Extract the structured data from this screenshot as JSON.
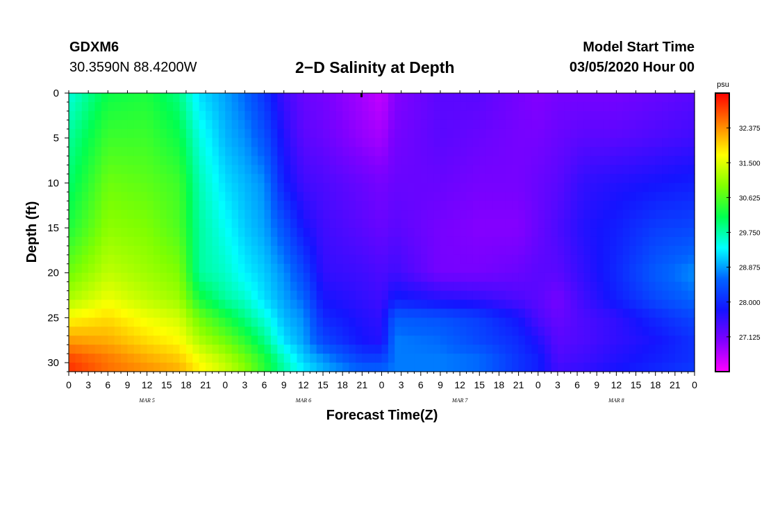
{
  "header": {
    "station": "GDXM6",
    "coords": "30.3590N 88.4200W",
    "title": "2−D Salinity at Depth",
    "start_label": "Model Start Time",
    "start_value": "03/05/2020 Hour 00"
  },
  "chart_data": {
    "type": "heatmap",
    "title": "2−D Salinity at Depth",
    "xlabel": "Forecast Time(Z)",
    "ylabel": "Depth (ft)",
    "x_hours": [
      0,
      96
    ],
    "x_tick_step_hours": 3,
    "x_tick_labels": [
      "0",
      "3",
      "6",
      "9",
      "12",
      "15",
      "18",
      "21",
      "0",
      "3",
      "6",
      "9",
      "12",
      "15",
      "18",
      "21",
      "0",
      "3",
      "6",
      "9",
      "12",
      "15",
      "18",
      "21",
      "0",
      "3",
      "6",
      "9",
      "12",
      "15",
      "18",
      "21",
      "0"
    ],
    "date_labels": [
      {
        "label": "MAR 5",
        "hour": 12
      },
      {
        "label": "MAR 6",
        "hour": 36
      },
      {
        "label": "MAR 7",
        "hour": 60
      },
      {
        "label": "MAR 8",
        "hour": 84
      }
    ],
    "ylim": [
      0,
      31
    ],
    "y_ticks": [
      0,
      5,
      10,
      15,
      20,
      25,
      30
    ],
    "colorbar": {
      "unit": "psu",
      "range": [
        26.25,
        33.25
      ],
      "ticks": [
        32.375,
        31.5,
        30.625,
        29.75,
        28.875,
        28.0,
        27.125
      ],
      "tick_labels": [
        "32.375",
        "31.500",
        "30.625",
        "29.750",
        "28.875",
        "28.000",
        "27.125"
      ],
      "colors": [
        "#ff00ff",
        "#8000ff",
        "#1414ff",
        "#0064ff",
        "#00ffff",
        "#00ff50",
        "#80ff00",
        "#ffff00",
        "#ff8000",
        "#ff0000"
      ]
    },
    "depth_nodes": [
      0,
      5,
      10,
      15,
      20,
      23,
      25,
      27.5,
      29.5,
      31
    ],
    "salinity_grid": [
      {
        "hour": 0,
        "values": [
          29.5,
          29.8,
          30.0,
          30.3,
          30.8,
          31.2,
          31.7,
          32.3,
          32.8,
          33.0
        ]
      },
      {
        "hour": 6,
        "values": [
          30.2,
          30.5,
          30.8,
          31.0,
          31.3,
          31.6,
          31.9,
          32.2,
          32.5,
          32.6
        ]
      },
      {
        "hour": 12,
        "values": [
          30.3,
          30.5,
          30.7,
          30.9,
          31.1,
          31.3,
          31.6,
          31.9,
          32.2,
          32.4
        ]
      },
      {
        "hour": 17,
        "values": [
          29.9,
          30.2,
          30.5,
          30.6,
          30.9,
          31.1,
          31.4,
          31.7,
          32.0,
          32.2
        ]
      },
      {
        "hour": 20,
        "values": [
          29.2,
          29.5,
          29.7,
          29.8,
          29.8,
          30.3,
          30.8,
          31.2,
          31.6,
          31.8
        ]
      },
      {
        "hour": 24,
        "values": [
          28.9,
          29.0,
          29.2,
          29.4,
          29.6,
          29.8,
          30.3,
          30.8,
          31.2,
          31.4
        ]
      },
      {
        "hour": 27,
        "values": [
          28.6,
          28.8,
          29.0,
          29.1,
          29.3,
          29.6,
          29.9,
          30.4,
          30.8,
          31.0
        ]
      },
      {
        "hour": 30,
        "values": [
          28.1,
          28.4,
          28.8,
          28.9,
          29.1,
          29.2,
          29.5,
          29.9,
          30.3,
          30.4
        ]
      },
      {
        "hour": 33,
        "values": [
          27.5,
          27.7,
          27.9,
          28.4,
          28.8,
          28.9,
          29.0,
          29.2,
          29.6,
          29.8
        ]
      },
      {
        "hour": 36,
        "values": [
          27.2,
          27.3,
          27.5,
          27.8,
          28.3,
          28.6,
          28.8,
          28.9,
          29.1,
          29.3
        ]
      },
      {
        "hour": 39,
        "values": [
          27.1,
          27.2,
          27.4,
          27.5,
          27.6,
          27.8,
          28.0,
          28.3,
          28.8,
          29.0
        ]
      },
      {
        "hour": 45,
        "values": [
          26.8,
          26.9,
          27.2,
          27.3,
          27.5,
          27.6,
          27.7,
          27.8,
          28.2,
          28.6
        ]
      },
      {
        "hour": 48,
        "values": [
          26.6,
          26.8,
          27.1,
          27.2,
          27.4,
          27.5,
          27.6,
          27.7,
          28.2,
          28.6
        ]
      },
      {
        "hour": 50,
        "values": [
          27.0,
          27.1,
          27.2,
          27.3,
          27.5,
          27.9,
          28.5,
          28.7,
          28.7,
          28.7
        ]
      },
      {
        "hour": 57,
        "values": [
          27.3,
          27.3,
          27.2,
          27.1,
          27.1,
          27.7,
          28.4,
          28.6,
          28.7,
          28.7
        ]
      },
      {
        "hour": 63,
        "values": [
          27.3,
          27.2,
          27.1,
          27.0,
          27.1,
          27.6,
          28.2,
          28.3,
          28.6,
          28.6
        ]
      },
      {
        "hour": 69,
        "values": [
          27.1,
          27.1,
          27.1,
          27.0,
          27.2,
          27.4,
          27.8,
          28.0,
          28.1,
          28.1
        ]
      },
      {
        "hour": 72,
        "values": [
          27.0,
          27.1,
          27.2,
          27.2,
          27.3,
          27.3,
          27.4,
          27.7,
          27.9,
          27.9
        ]
      },
      {
        "hour": 75,
        "values": [
          27.1,
          27.2,
          27.3,
          27.4,
          27.3,
          27.1,
          27.2,
          27.3,
          27.4,
          27.5
        ]
      },
      {
        "hour": 79,
        "values": [
          27.1,
          27.3,
          27.6,
          27.7,
          27.6,
          27.5,
          27.4,
          27.4,
          27.5,
          27.6
        ]
      },
      {
        "hour": 84,
        "values": [
          27.1,
          27.3,
          27.7,
          27.9,
          28.0,
          27.9,
          27.6,
          27.6,
          27.7,
          27.8
        ]
      },
      {
        "hour": 90,
        "values": [
          27.2,
          27.4,
          27.8,
          28.2,
          28.5,
          28.3,
          28.0,
          27.8,
          27.9,
          28.0
        ]
      },
      {
        "hour": 96,
        "values": [
          27.3,
          27.5,
          27.9,
          28.3,
          28.8,
          28.6,
          28.3,
          28.1,
          28.1,
          28.2
        ]
      }
    ]
  }
}
